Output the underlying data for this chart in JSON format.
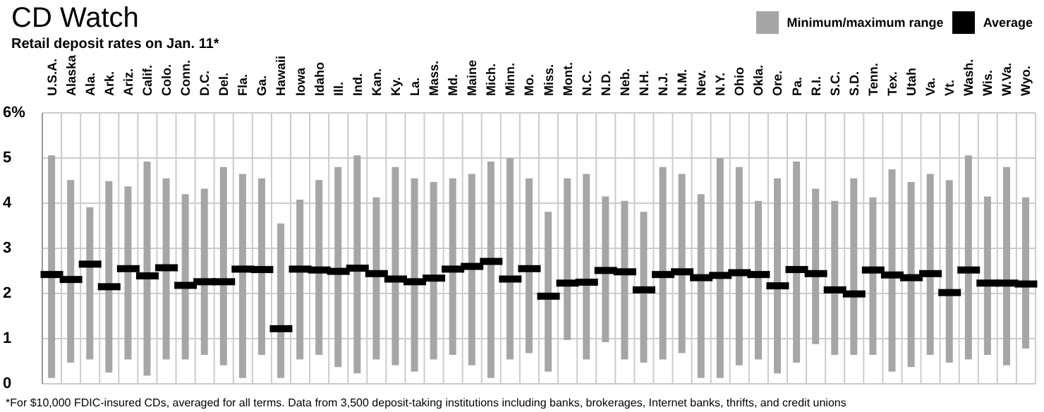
{
  "chart_data": {
    "type": "bar",
    "title": "CD Watch",
    "subtitle": "Retail deposit rates on Jan. 11*",
    "categories": [
      "U.S.A.",
      "Alaska",
      "Ala.",
      "Ark.",
      "Ariz.",
      "Calif.",
      "Colo.",
      "Conn.",
      "D.C.",
      "Del.",
      "Fla.",
      "Ga.",
      "Hawaii",
      "Iowa",
      "Idaho",
      "Ill.",
      "Ind.",
      "Kan.",
      "Ky.",
      "La.",
      "Mass.",
      "Md.",
      "Maine",
      "Mich.",
      "Minn.",
      "Mo.",
      "Miss.",
      "Mont.",
      "N.C.",
      "N.D.",
      "Neb.",
      "N.H.",
      "N.J.",
      "N.M.",
      "Nev.",
      "N.Y.",
      "Ohio",
      "Okla.",
      "Ore.",
      "Pa.",
      "R.I.",
      "S.C.",
      "S.D.",
      "Tenn.",
      "Tex.",
      "Utah",
      "Va.",
      "Vt.",
      "Wash.",
      "Wis.",
      "W.Va.",
      "Wyo."
    ],
    "series": [
      {
        "name": "Minimum/maximum range",
        "type": "bar",
        "color": "#a6a6a6",
        "base": [
          0.13,
          0.47,
          0.54,
          0.25,
          0.54,
          0.18,
          0.54,
          0.54,
          0.64,
          0.41,
          0.13,
          0.64,
          0.13,
          0.54,
          0.64,
          0.37,
          0.23,
          0.54,
          0.41,
          0.27,
          0.54,
          0.64,
          0.41,
          0.13,
          0.54,
          0.68,
          0.27,
          0.97,
          0.54,
          0.92,
          0.54,
          0.47,
          0.54,
          0.68,
          0.13,
          0.13,
          0.41,
          0.54,
          0.23,
          0.47,
          0.88,
          0.64,
          0.64,
          0.64,
          0.27,
          0.37,
          0.64,
          0.47,
          0.54,
          0.64,
          0.41,
          0.78
        ],
        "values": [
          4.93,
          4.04,
          3.37,
          4.24,
          3.83,
          4.74,
          4.01,
          3.66,
          3.68,
          4.39,
          4.52,
          3.91,
          3.42,
          3.54,
          3.87,
          4.43,
          4.83,
          3.59,
          4.39,
          4.28,
          3.93,
          3.91,
          4.24,
          4.79,
          4.46,
          3.87,
          3.54,
          3.58,
          4.11,
          3.23,
          3.51,
          3.34,
          4.26,
          3.97,
          4.07,
          4.87,
          4.39,
          3.51,
          4.32,
          4.45,
          3.44,
          3.41,
          3.91,
          3.49,
          4.48,
          4.1,
          4.01,
          4.04,
          4.52,
          3.51,
          4.39,
          3.35
        ]
      },
      {
        "name": "Average",
        "type": "scatter",
        "color": "#000000",
        "values": [
          2.42,
          2.31,
          2.65,
          2.15,
          2.55,
          2.39,
          2.57,
          2.18,
          2.26,
          2.26,
          2.54,
          2.53,
          1.22,
          2.54,
          2.52,
          2.49,
          2.56,
          2.44,
          2.32,
          2.26,
          2.34,
          2.54,
          2.6,
          2.71,
          2.32,
          2.55,
          1.94,
          2.23,
          2.25,
          2.51,
          2.48,
          2.08,
          2.42,
          2.48,
          2.35,
          2.4,
          2.46,
          2.42,
          2.17,
          2.53,
          2.44,
          2.08,
          1.99,
          2.52,
          2.41,
          2.35,
          2.44,
          2.02,
          2.52,
          2.23,
          2.23,
          2.21
        ]
      }
    ],
    "marker": "square",
    "ylim": [
      0,
      6
    ],
    "yticks": [
      0,
      1,
      2,
      3,
      4,
      5,
      {
        "value": 6,
        "label": "6%"
      }
    ],
    "grid": true,
    "legend": "top right",
    "annotations": [
      "*For $10,000 FDIC-insured CDs, averaged for all terms. Data from 3,500 deposit-taking institutions including banks, brokerages, Internet banks, thrifts, and credit unions"
    ]
  }
}
